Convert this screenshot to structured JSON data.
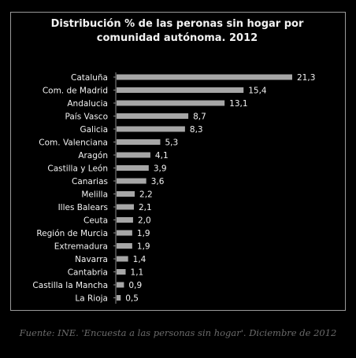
{
  "colors": {
    "background": "#000000",
    "bar": "#a6a6a6",
    "text": "#f2f2f2",
    "source_text": "#6b6b6b",
    "axis": "#8c8c8c"
  },
  "chart_data": {
    "type": "bar",
    "orientation": "horizontal",
    "title_lines": [
      "Distribución % de las peronas sin hogar por",
      "comunidad autónoma. 2012"
    ],
    "categories": [
      "Cataluña",
      "Com. de Madrid",
      "Andalucia",
      "País Vasco",
      "Galicia",
      "Com. Valenciana",
      "Aragón",
      "Castilla y León",
      "Canarias",
      "Melilla",
      "Illes Balears",
      "Ceuta",
      "Región de Murcia",
      "Extremadura",
      "Navarra",
      "Cantabria",
      "Castilla la Mancha",
      "La Rioja"
    ],
    "values": [
      21.3,
      15.4,
      13.1,
      8.7,
      8.3,
      5.3,
      4.1,
      3.9,
      3.6,
      2.2,
      2.1,
      2.0,
      1.9,
      1.9,
      1.4,
      1.1,
      0.9,
      0.5
    ],
    "value_labels": [
      "21,3",
      "15,4",
      "13,1",
      "8,7",
      "8,3",
      "5,3",
      "4,1",
      "3,9",
      "3,6",
      "2,2",
      "2,1",
      "2,0",
      "1,9",
      "1,9",
      "1,4",
      "1,1",
      "0,9",
      "0,5"
    ],
    "xlim": [
      0,
      21.3
    ],
    "grid": false,
    "legend": "none"
  },
  "source": "Fuente: INE. 'Encuesta a las personas sin hogar'. Diciembre de 2012"
}
